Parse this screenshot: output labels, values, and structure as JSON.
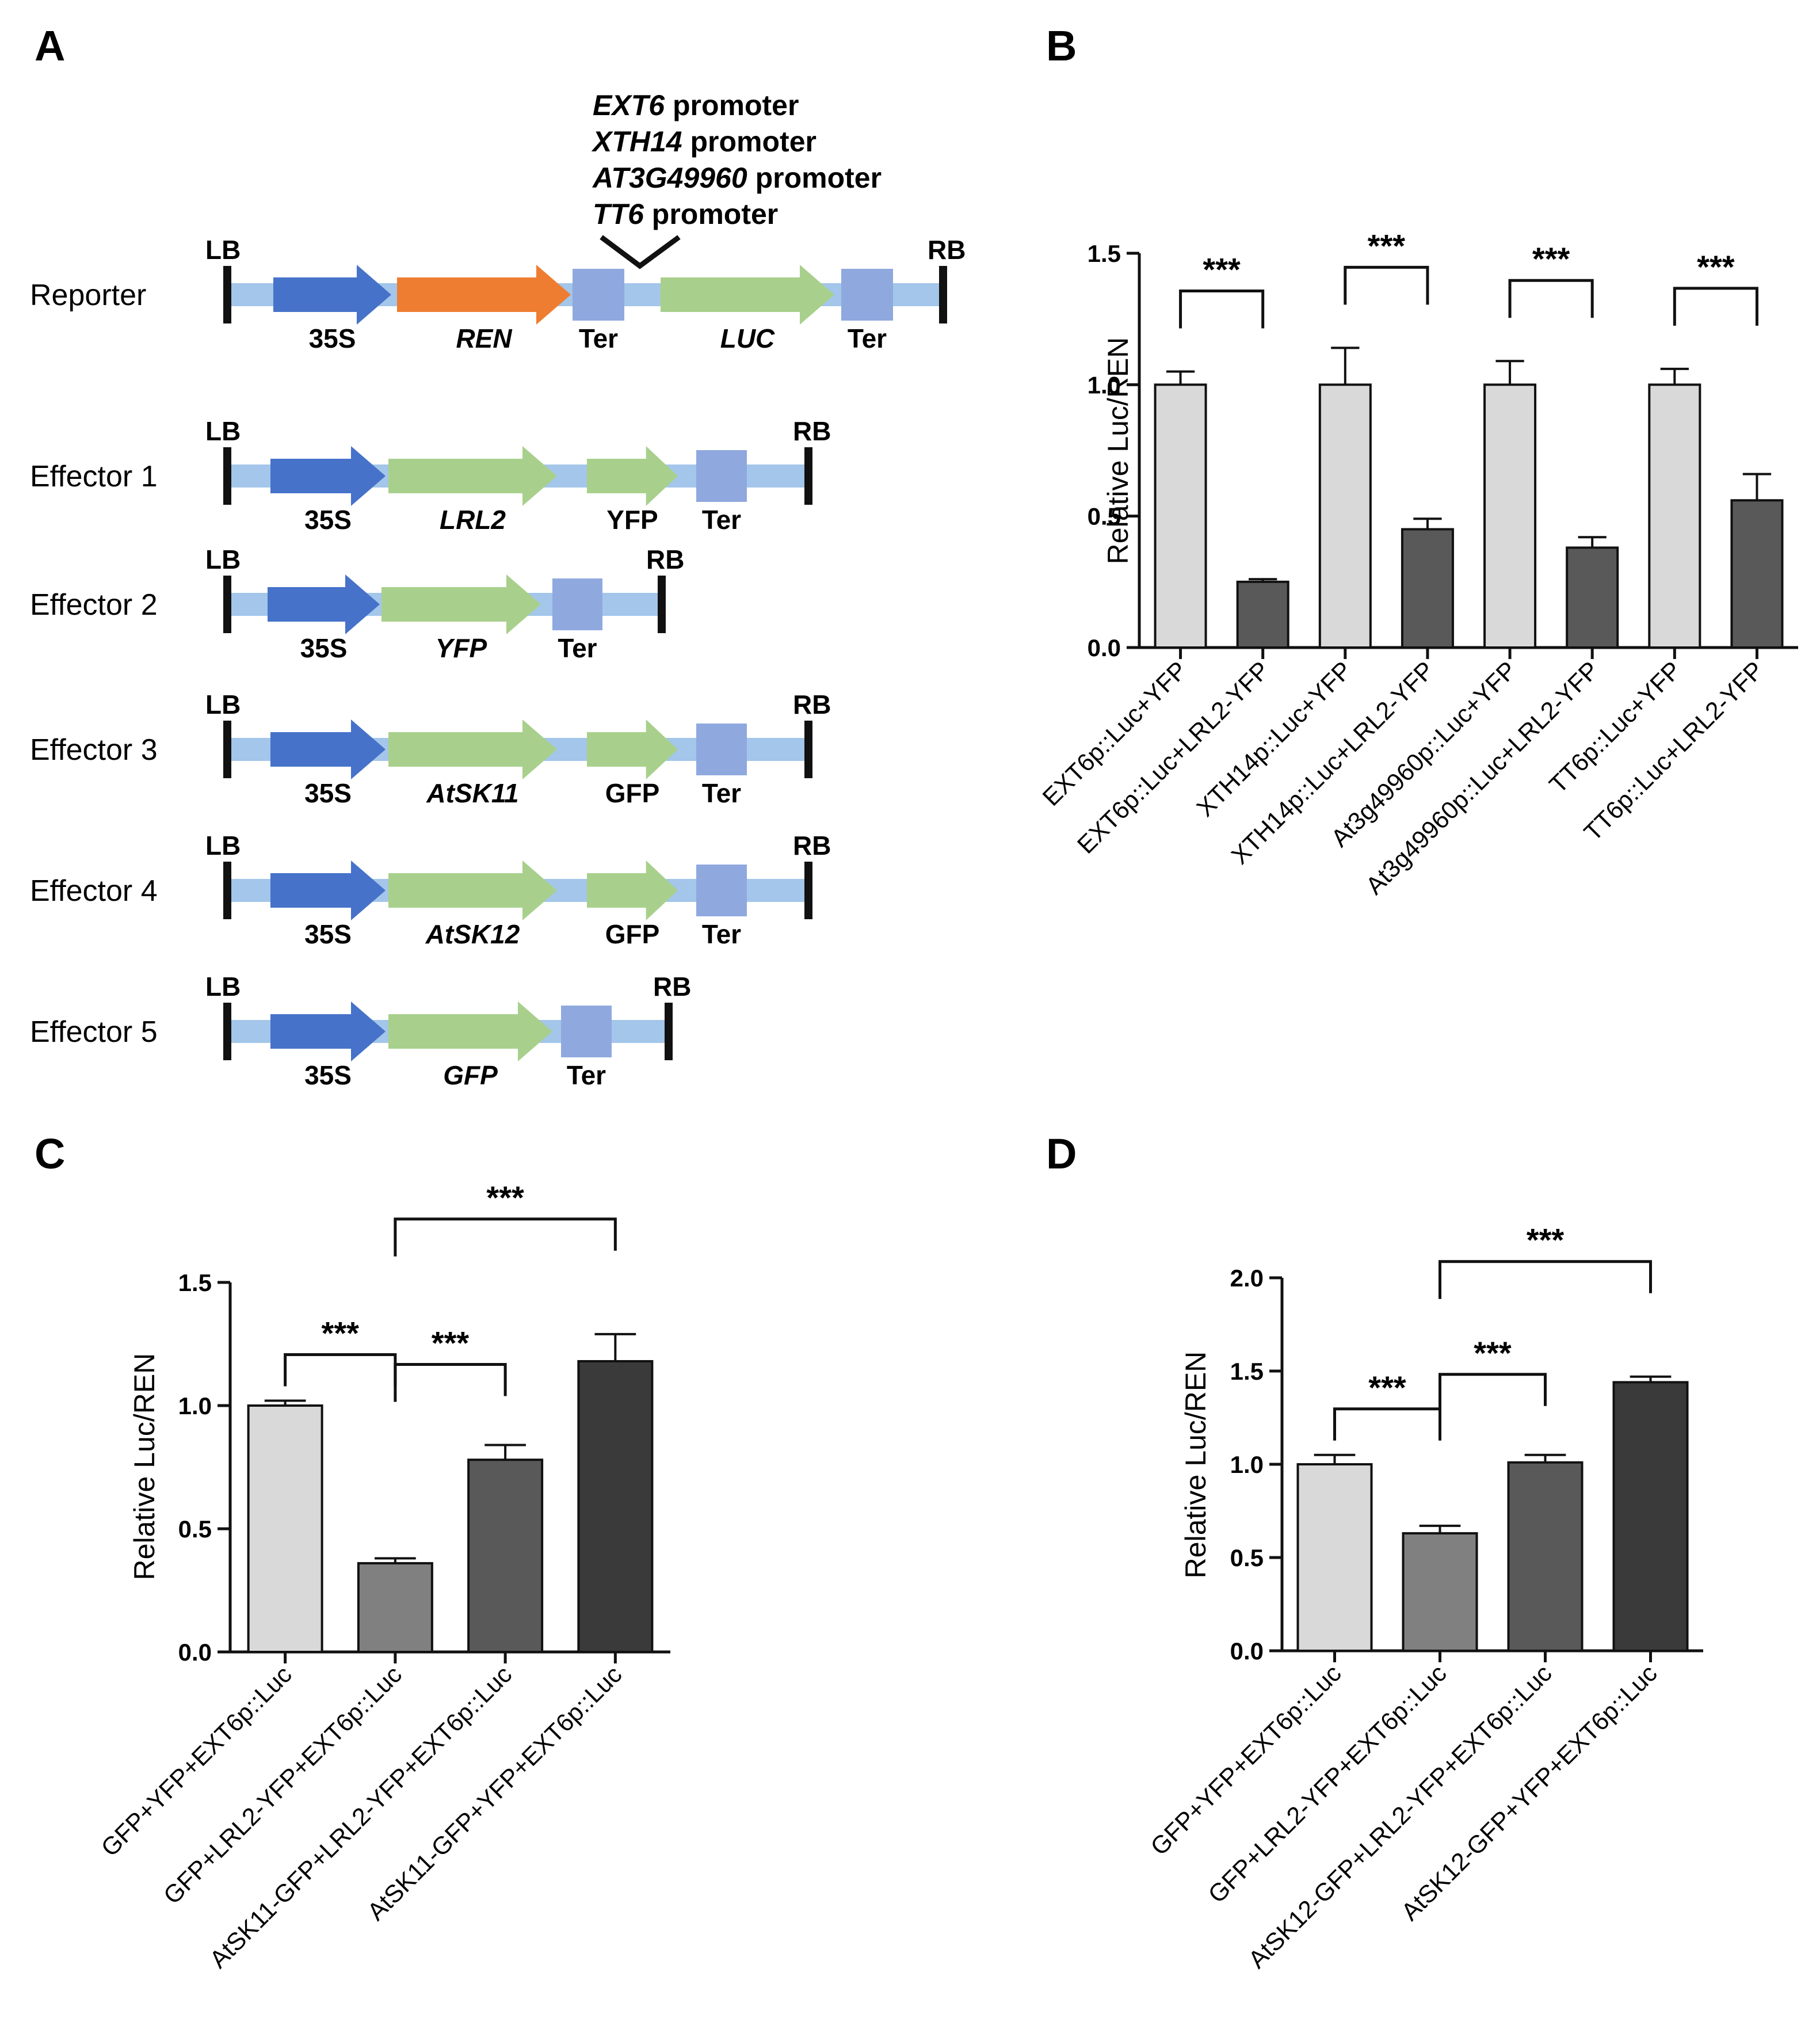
{
  "panels": {
    "A": "A",
    "B": "B",
    "C": "C",
    "D": "D"
  },
  "colors": {
    "backbone": "#a3c6ea",
    "promoter_35s": "#4672c9",
    "ren": "#ee7d31",
    "gene_green": "#a8d08c",
    "terminator": "#8fa9df",
    "border": "#111111",
    "bar_light": "#d9d9d9",
    "bar_mid": "#808080",
    "bar_darkmid": "#595959",
    "bar_dark": "#3a3a3a"
  },
  "diagram": {
    "promoters": [
      {
        "gene": "EXT6",
        "suffix": " promoter"
      },
      {
        "gene": "XTH14",
        "suffix": " promoter"
      },
      {
        "gene": "AT3G49960",
        "suffix": " promoter"
      },
      {
        "gene": "TT6",
        "suffix": " promoter"
      }
    ],
    "constructs": [
      {
        "name": "Reporter",
        "lb": "LB",
        "rb": "RB",
        "parts": [
          {
            "type": "arrow",
            "color": "promoter_35s",
            "label": "35S",
            "italic": false
          },
          {
            "type": "arrow",
            "color": "ren",
            "label": "REN",
            "italic": true
          },
          {
            "type": "box",
            "label": "Ter",
            "italic": false
          },
          {
            "type": "arrow",
            "color": "gene_green",
            "label": "LUC",
            "italic": true
          },
          {
            "type": "box",
            "label": "Ter",
            "italic": false
          }
        ]
      },
      {
        "name": "Effector 1",
        "lb": "LB",
        "rb": "RB",
        "parts": [
          {
            "type": "arrow",
            "color": "promoter_35s",
            "label": "35S",
            "italic": false
          },
          {
            "type": "arrow",
            "color": "gene_green",
            "label": "LRL2",
            "italic": true
          },
          {
            "type": "arrow",
            "color": "gene_green",
            "label": "YFP",
            "italic": false
          },
          {
            "type": "box",
            "label": "Ter",
            "italic": false
          }
        ]
      },
      {
        "name": "Effector 2",
        "lb": "LB",
        "rb": "RB",
        "parts": [
          {
            "type": "arrow",
            "color": "promoter_35s",
            "label": "35S",
            "italic": false
          },
          {
            "type": "arrow",
            "color": "gene_green",
            "label": "YFP",
            "italic": true
          },
          {
            "type": "box",
            "label": "Ter",
            "italic": false
          }
        ]
      },
      {
        "name": "Effector 3",
        "lb": "LB",
        "rb": "RB",
        "parts": [
          {
            "type": "arrow",
            "color": "promoter_35s",
            "label": "35S",
            "italic": false
          },
          {
            "type": "arrow",
            "color": "gene_green",
            "label": "AtSK11",
            "italic": true
          },
          {
            "type": "arrow",
            "color": "gene_green",
            "label": "GFP",
            "italic": false
          },
          {
            "type": "box",
            "label": "Ter",
            "italic": false
          }
        ]
      },
      {
        "name": "Effector 4",
        "lb": "LB",
        "rb": "RB",
        "parts": [
          {
            "type": "arrow",
            "color": "promoter_35s",
            "label": "35S",
            "italic": false
          },
          {
            "type": "arrow",
            "color": "gene_green",
            "label": "AtSK12",
            "italic": true
          },
          {
            "type": "arrow",
            "color": "gene_green",
            "label": "GFP",
            "italic": false
          },
          {
            "type": "box",
            "label": "Ter",
            "italic": false
          }
        ]
      },
      {
        "name": "Effector 5",
        "lb": "LB",
        "rb": "RB",
        "parts": [
          {
            "type": "arrow",
            "color": "promoter_35s",
            "label": "35S",
            "italic": false
          },
          {
            "type": "arrow",
            "color": "gene_green",
            "label": "GFP",
            "italic": true
          },
          {
            "type": "box",
            "label": "Ter",
            "italic": false
          }
        ]
      }
    ]
  },
  "chart_data": [
    {
      "panel": "B",
      "type": "bar",
      "ylabel": "Relative Luc/REN",
      "ylim": [
        0,
        1.5
      ],
      "yticks": [
        "0.0",
        "0.5",
        "1.0",
        "1.5"
      ],
      "categories": [
        "EXT6p::Luc+YFP",
        "EXT6p::Luc+LRL2-YFP",
        "XTH14p::Luc+YFP",
        "XTH14p::Luc+LRL2-YFP",
        "At3g49960p::Luc+YFP",
        "At3g49960p::Luc+LRL2-YFP",
        "TT6p::Luc+YFP",
        "TT6p::Luc+LRL2-YFP"
      ],
      "values": [
        1.0,
        0.25,
        1.0,
        0.45,
        1.0,
        0.38,
        1.0,
        0.56
      ],
      "errors": [
        0.05,
        0.01,
        0.14,
        0.04,
        0.09,
        0.04,
        0.06,
        0.1
      ],
      "bar_colors": [
        "bar_light",
        "bar_darkmid",
        "bar_light",
        "bar_darkmid",
        "bar_light",
        "bar_darkmid",
        "bar_light",
        "bar_darkmid"
      ],
      "significance": [
        {
          "from": 0,
          "to": [
            1
          ],
          "label": "***"
        },
        {
          "from": 2,
          "to": [
            3
          ],
          "label": "***"
        },
        {
          "from": 4,
          "to": [
            5
          ],
          "label": "***"
        },
        {
          "from": 6,
          "to": [
            7
          ],
          "label": "***"
        }
      ]
    },
    {
      "panel": "C",
      "type": "bar",
      "ylabel": "Relative Luc/REN",
      "ylim": [
        0,
        1.5
      ],
      "yticks": [
        "0.0",
        "0.5",
        "1.0",
        "1.5"
      ],
      "categories": [
        "GFP+YFP+EXT6p::Luc",
        "GFP+LRL2-YFP+EXT6p::Luc",
        "AtSK11-GFP+LRL2-YFP+EXT6p::Luc",
        "AtSK11-GFP+YFP+EXT6p::Luc"
      ],
      "values": [
        1.0,
        0.36,
        0.78,
        1.18
      ],
      "errors": [
        0.02,
        0.02,
        0.06,
        0.11
      ],
      "bar_colors": [
        "bar_light",
        "bar_mid",
        "bar_darkmid",
        "bar_dark"
      ],
      "significance": [
        {
          "from": 0,
          "to": [
            1
          ],
          "label": "***"
        },
        {
          "from": 1,
          "to": [
            2
          ],
          "label": "***"
        },
        {
          "from": 1,
          "to": [
            3
          ],
          "label": "***"
        }
      ]
    },
    {
      "panel": "D",
      "type": "bar",
      "ylabel": "Relative Luc/REN",
      "ylim": [
        0,
        2.0
      ],
      "yticks": [
        "0.0",
        "0.5",
        "1.0",
        "1.5",
        "2.0"
      ],
      "categories": [
        "GFP+YFP+EXT6p::Luc",
        "GFP+LRL2-YFP+EXT6p::Luc",
        "AtSK12-GFP+LRL2-YFP+EXT6p::Luc",
        "AtSK12-GFP+YFP+EXT6p::Luc"
      ],
      "values": [
        1.0,
        0.63,
        1.01,
        1.44
      ],
      "errors": [
        0.05,
        0.04,
        0.04,
        0.03
      ],
      "bar_colors": [
        "bar_light",
        "bar_mid",
        "bar_darkmid",
        "bar_dark"
      ],
      "significance": [
        {
          "from": 0,
          "to": [
            1
          ],
          "label": "***"
        },
        {
          "from": 1,
          "to": [
            2
          ],
          "label": "***"
        },
        {
          "from": 1,
          "to": [
            3
          ],
          "label": "***"
        }
      ]
    }
  ]
}
